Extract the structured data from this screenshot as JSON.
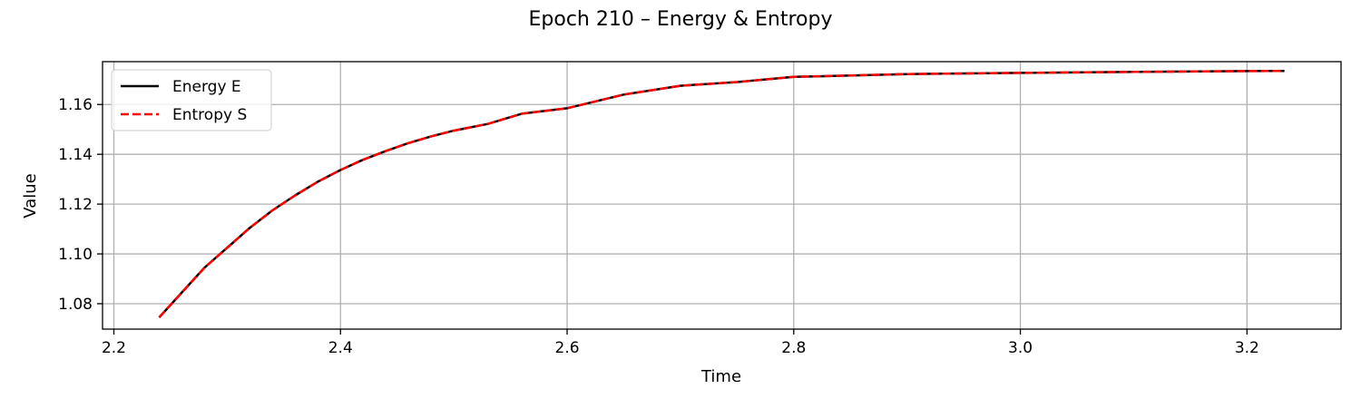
{
  "chart_data": {
    "type": "line",
    "title": "Epoch 210 – Energy & Entropy",
    "xlabel": "Time",
    "ylabel": "Value",
    "xlim": [
      2.19,
      3.283
    ],
    "ylim": [
      1.0698,
      1.1772
    ],
    "xticks": [
      2.2,
      2.4,
      2.6,
      2.8,
      3.0,
      3.2
    ],
    "xtick_labels": [
      "2.2",
      "2.4",
      "2.6",
      "2.8",
      "3.0",
      "3.2"
    ],
    "yticks": [
      1.08,
      1.1,
      1.12,
      1.14,
      1.16
    ],
    "ytick_labels": [
      "1.08",
      "1.10",
      "1.12",
      "1.14",
      "1.16"
    ],
    "grid": true,
    "legend_position": "upper-left",
    "series": [
      {
        "name": "Energy E",
        "color": "#000000",
        "style": "solid",
        "x": [
          2.24,
          2.26,
          2.28,
          2.3,
          2.32,
          2.34,
          2.36,
          2.38,
          2.4,
          2.42,
          2.44,
          2.46,
          2.48,
          2.5,
          2.53,
          2.56,
          2.6,
          2.65,
          2.7,
          2.75,
          2.8,
          2.9,
          3.0,
          3.1,
          3.2,
          3.233
        ],
        "y": [
          1.0745,
          1.0845,
          1.0945,
          1.1025,
          1.1105,
          1.1175,
          1.1235,
          1.129,
          1.1337,
          1.1378,
          1.1413,
          1.1445,
          1.1472,
          1.1495,
          1.1522,
          1.1563,
          1.1585,
          1.164,
          1.1675,
          1.169,
          1.1711,
          1.1722,
          1.1727,
          1.1731,
          1.1734,
          1.1735
        ]
      },
      {
        "name": "Entropy S",
        "color": "#ff0000",
        "style": "dashed",
        "x": [
          2.24,
          2.26,
          2.28,
          2.3,
          2.32,
          2.34,
          2.36,
          2.38,
          2.4,
          2.42,
          2.44,
          2.46,
          2.48,
          2.5,
          2.53,
          2.56,
          2.6,
          2.65,
          2.7,
          2.75,
          2.8,
          2.9,
          3.0,
          3.1,
          3.2,
          3.233
        ],
        "y": [
          1.0745,
          1.0845,
          1.0945,
          1.1025,
          1.1105,
          1.1175,
          1.1235,
          1.129,
          1.1337,
          1.1378,
          1.1413,
          1.1445,
          1.1472,
          1.1495,
          1.1522,
          1.1563,
          1.1585,
          1.164,
          1.1675,
          1.169,
          1.1711,
          1.1722,
          1.1727,
          1.1731,
          1.1734,
          1.1735
        ]
      }
    ]
  }
}
